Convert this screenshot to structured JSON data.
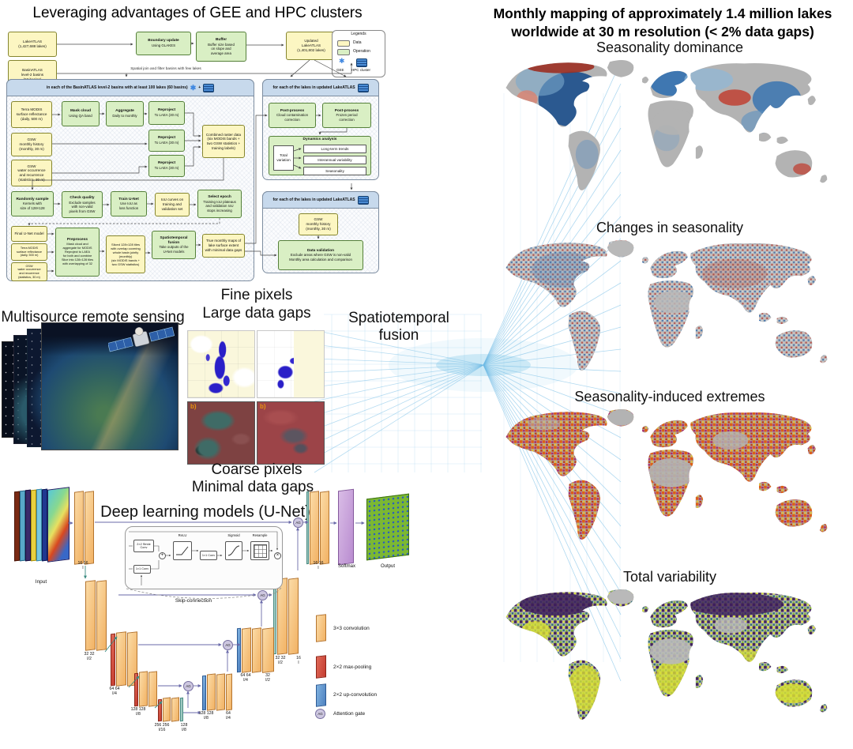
{
  "colors": {
    "data_box": "#fcf6c2",
    "operation_box": "#d9efc4",
    "container_header": "#c7d9ec",
    "gee_blue": "#3f87e0",
    "hpc_blue": "#2b6cb8",
    "fan_blue": "#6db9e4",
    "continent_gray": "#b3b3b3",
    "conv_orange": "#f2b264",
    "pool_red": "#c43c30",
    "upconv_blue": "#4f82c0",
    "attention_lavender": "#cdc7e0",
    "softmax_purple": "#b98cd0"
  },
  "fc": {
    "title": "Leveraging advantages of GEE and HPC clusters",
    "spatial_join": "Spatial join and filter basins with few lakes",
    "plus": "+",
    "legend": {
      "title": "Legends",
      "data": "Data",
      "operation": "Operation",
      "gee": "GEE",
      "hpc": "HPC cluster"
    },
    "basin_header": "in each of the BasinATLAS level-2 basins with at least 100 lakes (60 basins)",
    "lake_header": "for each of the lakes in updated LakeATLAS",
    "boxes": {
      "lakeatlas": "LakeATLAS\n(1,427,688 lakes)",
      "basinatlas": "BasinATLAS\nlevel-2 basins\n(62 basins)",
      "boundary": {
        "h": "Boundary update",
        "b": "Using GLAKES"
      },
      "buffer": {
        "h": "Buffer",
        "b": "Buffer size based\non slope and\naverage area"
      },
      "updated": "Updated\nLakeATLAS\n(1,401,802 lakes)",
      "terra": "Terra MODIS\nsurface reflectance\n(daily, 500 m)",
      "mask": {
        "h": "Mask cloud",
        "b": "Using QA band"
      },
      "aggregate": {
        "h": "Aggregate",
        "b": "Daily to monthly"
      },
      "reproject": {
        "h": "Reproject",
        "b": "To LAEA (30 m)"
      },
      "gsw_monthly": "GSW\nmonthly history\n(monthly, 30 m)",
      "gsw_stats": "GSW\nwater occurrence\nand recurrence\n(statistics, 30 m)",
      "combined": "Combined raster data\n(six MODIS bands +\ntwo GSW statistics +\ntraining labels)",
      "sample": {
        "h": "Randomly sample",
        "b": "Kernels with\nsize of 128×128"
      },
      "quality": {
        "h": "Check quality",
        "b": "Exclude samples\nwith non-valid\npixels from GSW"
      },
      "train": {
        "h": "Train U-Net",
        "b": "Use IoU as\nloss function"
      },
      "iou": "IoU curves on\ntraining and\nvalidation set",
      "epoch": {
        "h": "Select epoch",
        "b": "Training IoU plateaus\nand validation IoU\nstops increasing"
      },
      "final": "Final U-Net model",
      "preprocess": {
        "h": "Preprocess",
        "b": "Mask cloud and\naggregate for MODIS\nReproject to LAEA\nfor both and combine\nSlice into 128×128 tiles\nwith overlapping of 32"
      },
      "sliced": "Sliced 128×128 tiles\nwith overlap covering\nwhole basin jointly\n(monthly)\n(six MODIS bands +\ntwo GSW statistics)",
      "stfusion": {
        "h": "Spatiotemporal fusion",
        "b": "Take outputs of the\nU-Net models"
      },
      "truemaps": "True monthly maps of\nlake surface extent\nwith minimal data gaps",
      "pp1": {
        "h": "Post-process",
        "b": "Cloud contamination\ncorrection"
      },
      "pp2": {
        "h": "Post-process",
        "b": "Frozen period\ncorrection"
      },
      "dynamics": "Dynamics analysis",
      "total_variation": "Total\nvariation",
      "longterm": "Long-term trends",
      "interannual": "Interannual variability",
      "seasonality": "Seasonality",
      "validation": {
        "h": "Data validation",
        "b": "Exclude areas where GSW is non-valid\nMonthly area calculation and comparison"
      }
    }
  },
  "middle": {
    "multisource": "Multisource remote sensing",
    "fine": "Fine pixels",
    "large": "Large data gaps",
    "coarse": "Coarse pixels",
    "minimal": "Minimal data gaps",
    "fusion": "Spatiotemporal\nfusion",
    "b1": "b)",
    "b2": "b)"
  },
  "unet": {
    "title": "Deep learning models (U-Net)",
    "input": "Input",
    "softmax": "Softmax",
    "output": "Output",
    "skip": "Skip-connection",
    "ag": "AG",
    "inset": {
      "stride": "2×2 Stride\nConv",
      "conv1": "1×1 Conv",
      "relu": "ReLU",
      "conv2": "1×1 Conv",
      "sigmoid": "Sigmoid",
      "resample": "Resample"
    },
    "labels": {
      "e1": "16 16\nI",
      "e2": "32 32\nI/2",
      "e3": "64 64\nI/4",
      "e4": "128 128\nI/8",
      "b": "256 256\nI/16",
      "b2": "128\nI/8",
      "d4": "128 128\nI/8",
      "d4b": "64\nI/4",
      "d3": "64 64\nI/4",
      "d3b": "32\nI/2",
      "d2": "32 32\nI/2",
      "d2b": "16\nI",
      "d1": "16 16\nI"
    },
    "legend": {
      "conv": "3×3 convolution",
      "pool": "2×2 max-pooling",
      "upconv": "2×2 up-convolution",
      "attention": "Attention gate"
    }
  },
  "maps": {
    "title": "Monthly mapping of approximately 1.4 million lakes\nworldwide at 30 m resolution (< 2% data gaps)",
    "sections": [
      {
        "title": "Seasonality dominance"
      },
      {
        "title": "Changes in seasonality"
      },
      {
        "title": "Seasonality-induced extremes"
      },
      {
        "title": "Total variability"
      }
    ]
  }
}
